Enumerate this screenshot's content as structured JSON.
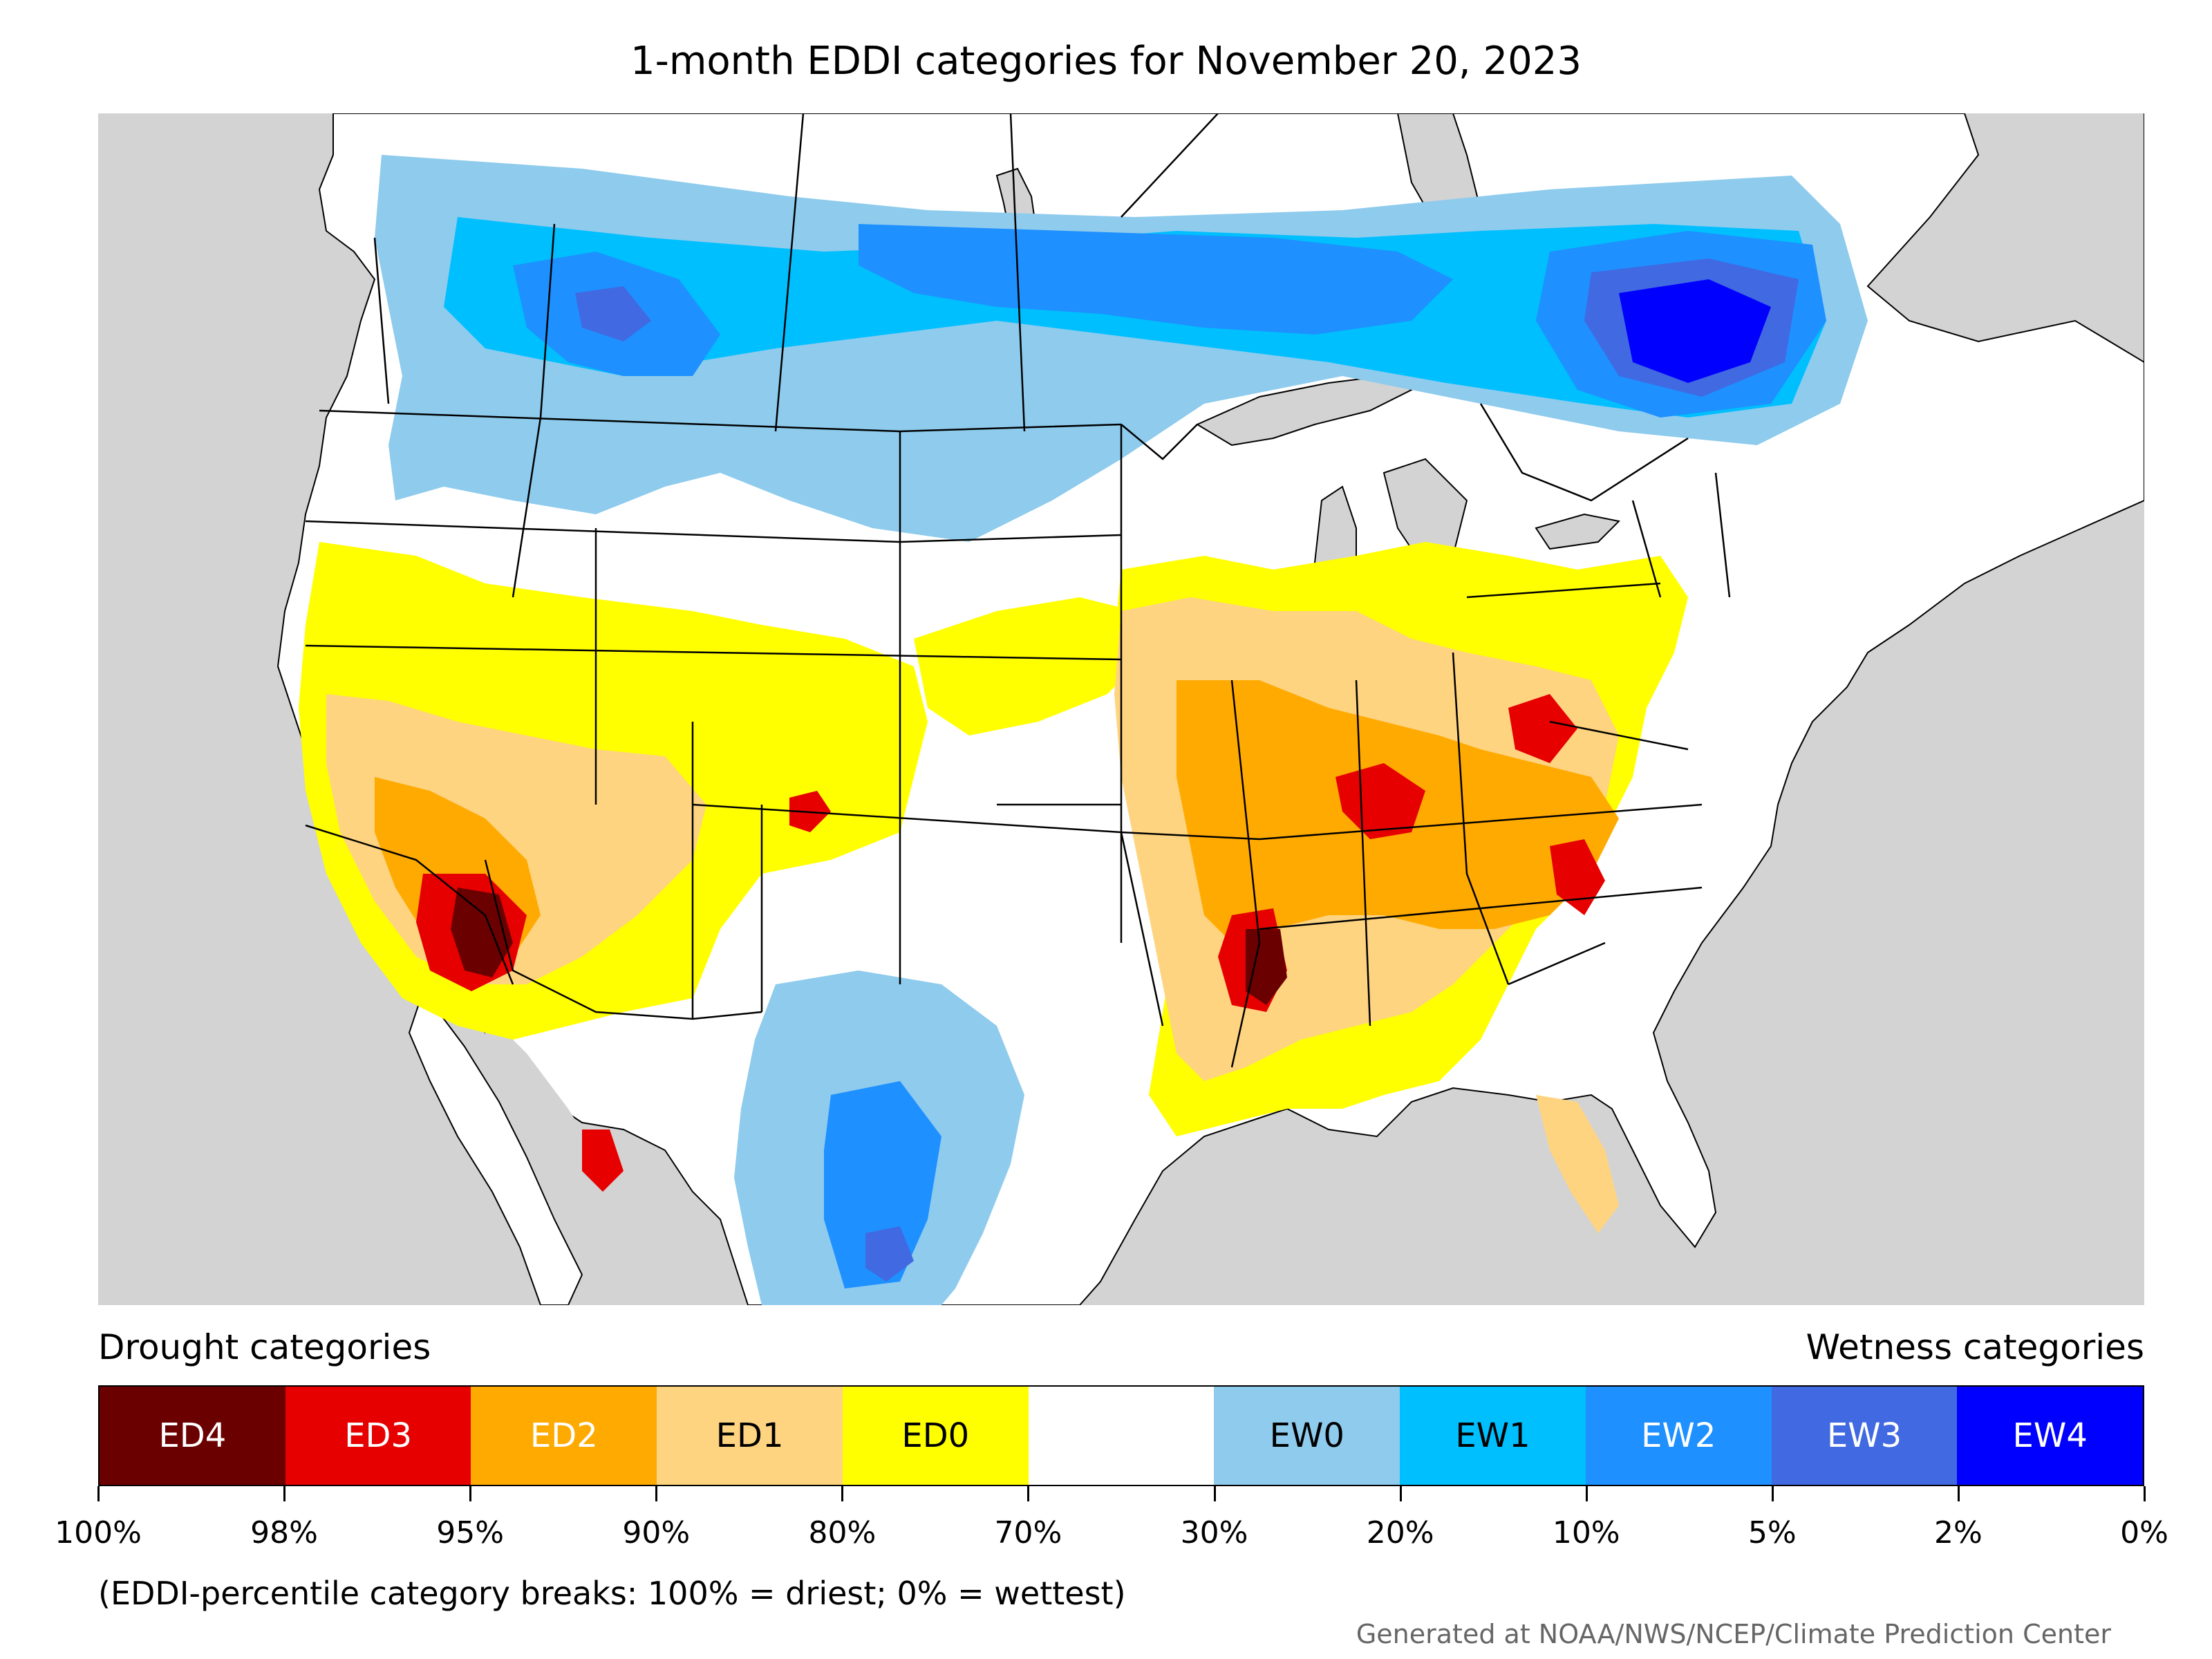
{
  "title": "1-month EDDI categories for November 20, 2023",
  "legend": {
    "drought_heading": "Drought categories",
    "wetness_heading": "Wetness categories",
    "categories": [
      {
        "label": "ED4",
        "color": "#6b0000",
        "text_color": "#ffffff"
      },
      {
        "label": "ED3",
        "color": "#e60000",
        "text_color": "#ffffff"
      },
      {
        "label": "ED2",
        "color": "#ffaa00",
        "text_color": "#ffffff"
      },
      {
        "label": "ED1",
        "color": "#fed480",
        "text_color": "#000000"
      },
      {
        "label": "ED0",
        "color": "#ffff00",
        "text_color": "#000000"
      },
      {
        "label": "",
        "color": "#ffffff",
        "text_color": "#000000"
      },
      {
        "label": "EW0",
        "color": "#8ecbed",
        "text_color": "#000000"
      },
      {
        "label": "EW1",
        "color": "#00bfff",
        "text_color": "#000000"
      },
      {
        "label": "EW2",
        "color": "#1e90ff",
        "text_color": "#ffffff"
      },
      {
        "label": "EW3",
        "color": "#4169e1",
        "text_color": "#ffffff"
      },
      {
        "label": "EW4",
        "color": "#0000ff",
        "text_color": "#ffffff"
      }
    ],
    "breaks": [
      "100%",
      "98%",
      "95%",
      "90%",
      "80%",
      "70%",
      "30%",
      "20%",
      "10%",
      "5%",
      "2%",
      "0%"
    ]
  },
  "note": "(EDDI-percentile category breaks: 100% = driest; 0% = wettest)",
  "credit": "Generated at NOAA/NWS/NCEP/Climate Prediction Center",
  "map": {
    "land_color": "#ffffff",
    "ocean_color": "#d3d3d3",
    "border_color": "#000000"
  }
}
